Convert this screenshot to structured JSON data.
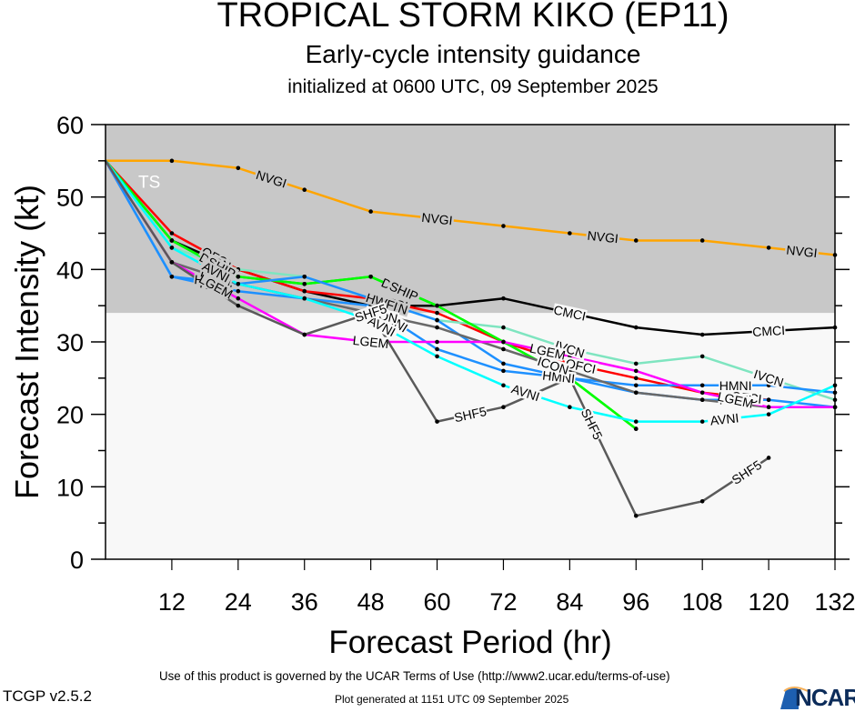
{
  "header": {
    "title": "TROPICAL STORM KIKO (EP11)",
    "subtitle": "Early-cycle intensity guidance",
    "initialized": "initialized at 0600 UTC, 09 September 2025"
  },
  "footer": {
    "terms": "Use of this product is governed by the UCAR Terms of Use (http://www2.ucar.edu/terms-of-use)",
    "version": "TCGP v2.5.2",
    "generated": "Plot generated at 1151 UTC   09 September 2025",
    "logo_text": "NCAR"
  },
  "chart_data": {
    "type": "line",
    "title": "TROPICAL STORM KIKO (EP11)",
    "xlabel": "Forecast Period (hr)",
    "ylabel": "Forecast Intensity (kt)",
    "xlim": [
      0,
      132
    ],
    "ylim": [
      0,
      60
    ],
    "xticks": [
      12,
      24,
      36,
      48,
      60,
      72,
      84,
      96,
      108,
      120,
      132
    ],
    "yticks": [
      0,
      10,
      20,
      30,
      40,
      50,
      60
    ],
    "threshold_band": {
      "label": "TS",
      "from": 34,
      "to": 60,
      "color": "#c8c8c8"
    },
    "below_band_color": "#f8f8f8",
    "series": [
      {
        "name": "NVGI",
        "color": "#ffa500",
        "x": [
          0,
          12,
          24,
          36,
          48,
          72,
          84,
          96,
          108,
          120,
          132
        ],
        "values": [
          55,
          55,
          54,
          51,
          48,
          46,
          45,
          44,
          44,
          43,
          42
        ],
        "label_at": [
          30,
          60,
          90,
          126
        ]
      },
      {
        "name": "CMCI",
        "color": "#000000",
        "x": [
          0,
          12,
          24,
          36,
          48,
          60,
          72,
          96,
          108,
          132
        ],
        "values": [
          55,
          44,
          40,
          37,
          35,
          35,
          36,
          32,
          31,
          32
        ],
        "label_at": [
          84,
          120
        ]
      },
      {
        "name": "OFCI",
        "color": "#ff0000",
        "x": [
          0,
          12,
          24,
          36,
          48,
          60,
          72,
          84,
          96,
          108,
          120
        ],
        "values": [
          55,
          45,
          40,
          37,
          36,
          34,
          30,
          27,
          25,
          23,
          22
        ],
        "label_at": [
          20,
          52,
          86,
          116
        ]
      },
      {
        "name": "IVCN",
        "color": "#7fe5c0",
        "x": [
          0,
          12,
          24,
          36,
          48,
          60,
          72,
          84,
          96,
          108,
          120,
          132
        ],
        "values": [
          55,
          43,
          40,
          39,
          36,
          33,
          32,
          29,
          27,
          28,
          25,
          22
        ],
        "label_at": [
          20,
          52,
          84,
          120
        ]
      },
      {
        "name": "DSHP",
        "color": "#00e000",
        "x": [
          0,
          12,
          24,
          36,
          48,
          60,
          72,
          84,
          96
        ],
        "values": [
          55,
          44,
          39,
          38,
          39,
          35,
          30,
          25,
          18
        ],
        "label_at": [
          20,
          53
        ]
      },
      {
        "name": "SHIP",
        "color": "#00ff00",
        "x": [
          0,
          12,
          24,
          36,
          48,
          60,
          72,
          84,
          96
        ],
        "values": [
          55,
          44,
          39,
          38,
          39,
          35,
          30,
          25,
          18
        ],
        "label_at": [
          21,
          54
        ]
      },
      {
        "name": "HWFI",
        "color": "#1e90ff",
        "x": [
          0,
          12,
          24,
          36,
          48,
          60,
          72,
          84,
          96,
          108,
          120,
          132
        ],
        "values": [
          55,
          39,
          38,
          39,
          36,
          33,
          27,
          25,
          23,
          22,
          22,
          21
        ],
        "label_at": [
          19,
          50,
          82,
          114
        ]
      },
      {
        "name": "HMNI",
        "color": "#1e90ff",
        "x": [
          0,
          12,
          24,
          36,
          48,
          60,
          72,
          84,
          96,
          108,
          120,
          132
        ],
        "values": [
          55,
          39,
          37,
          36,
          35,
          29,
          26,
          25,
          24,
          24,
          24,
          23
        ],
        "label_at": [
          20,
          52,
          82,
          114
        ]
      },
      {
        "name": "ICON",
        "color": "#696969",
        "x": [
          0,
          12,
          24,
          36,
          48,
          60,
          72,
          84,
          96,
          108,
          120,
          132
        ],
        "values": [
          55,
          41,
          38,
          36,
          34,
          32,
          29,
          26,
          23,
          22,
          21,
          21
        ],
        "label_at": [
          20,
          50,
          81
        ]
      },
      {
        "name": "LGEM",
        "color": "#ff00ff",
        "x": [
          0,
          12,
          24,
          36,
          48,
          60,
          72,
          84,
          96,
          108,
          120,
          132
        ],
        "values": [
          55,
          41,
          36,
          31,
          30,
          30,
          30,
          28,
          26,
          23,
          21,
          21
        ],
        "label_at": [
          20,
          48,
          80,
          114
        ]
      },
      {
        "name": "AVNI",
        "color": "#00ffff",
        "x": [
          0,
          12,
          24,
          36,
          48,
          60,
          72,
          84,
          96,
          108,
          120,
          132
        ],
        "values": [
          55,
          43,
          38,
          36,
          33,
          28,
          24,
          21,
          19,
          19,
          20,
          24
        ],
        "label_at": [
          20,
          50,
          76,
          112
        ]
      },
      {
        "name": "SHF5",
        "color": "#5a5a5a",
        "x": [
          0,
          12,
          24,
          36,
          48,
          60,
          72,
          84,
          96,
          108,
          120
        ],
        "values": [
          55,
          41,
          35,
          31,
          34,
          19,
          21,
          25,
          6,
          8,
          14
        ],
        "label_at": [
          48,
          66,
          88,
          116
        ]
      }
    ]
  }
}
